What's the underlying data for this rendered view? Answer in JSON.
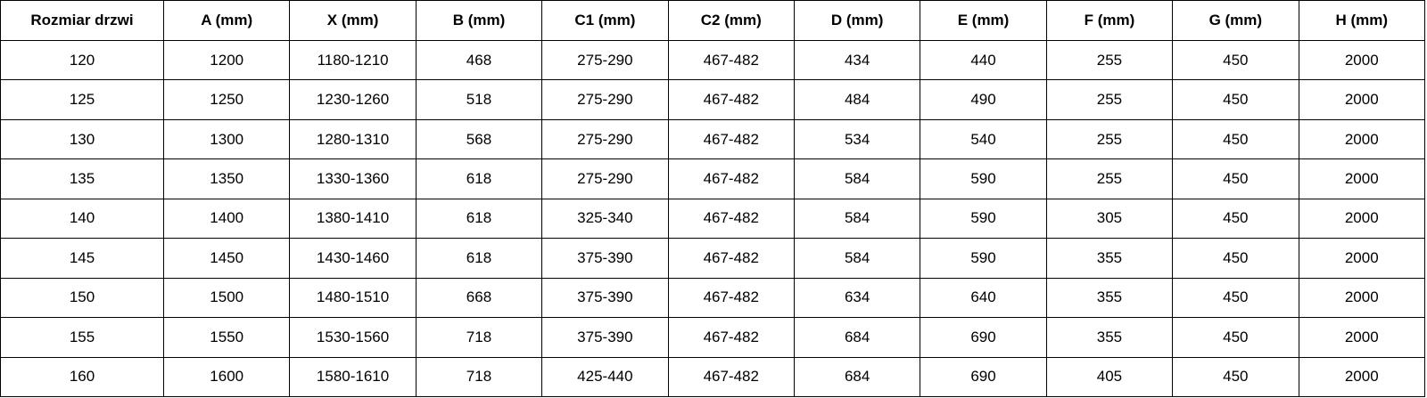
{
  "table": {
    "headers": [
      "Rozmiar drzwi",
      "A (mm)",
      "X (mm)",
      "B (mm)",
      "C1 (mm)",
      "C2 (mm)",
      "D (mm)",
      "E (mm)",
      "F (mm)",
      "G (mm)",
      "H (mm)"
    ],
    "rows": [
      [
        "120",
        "1200",
        "1180-1210",
        "468",
        "275-290",
        "467-482",
        "434",
        "440",
        "255",
        "450",
        "2000"
      ],
      [
        "125",
        "1250",
        "1230-1260",
        "518",
        "275-290",
        "467-482",
        "484",
        "490",
        "255",
        "450",
        "2000"
      ],
      [
        "130",
        "1300",
        "1280-1310",
        "568",
        "275-290",
        "467-482",
        "534",
        "540",
        "255",
        "450",
        "2000"
      ],
      [
        "135",
        "1350",
        "1330-1360",
        "618",
        "275-290",
        "467-482",
        "584",
        "590",
        "255",
        "450",
        "2000"
      ],
      [
        "140",
        "1400",
        "1380-1410",
        "618",
        "325-340",
        "467-482",
        "584",
        "590",
        "305",
        "450",
        "2000"
      ],
      [
        "145",
        "1450",
        "1430-1460",
        "618",
        "375-390",
        "467-482",
        "584",
        "590",
        "355",
        "450",
        "2000"
      ],
      [
        "150",
        "1500",
        "1480-1510",
        "668",
        "375-390",
        "467-482",
        "634",
        "640",
        "355",
        "450",
        "2000"
      ],
      [
        "155",
        "1550",
        "1530-1560",
        "718",
        "375-390",
        "467-482",
        "684",
        "690",
        "355",
        "450",
        "2000"
      ],
      [
        "160",
        "1600",
        "1580-1610",
        "718",
        "425-440",
        "467-482",
        "684",
        "690",
        "405",
        "450",
        "2000"
      ]
    ]
  }
}
